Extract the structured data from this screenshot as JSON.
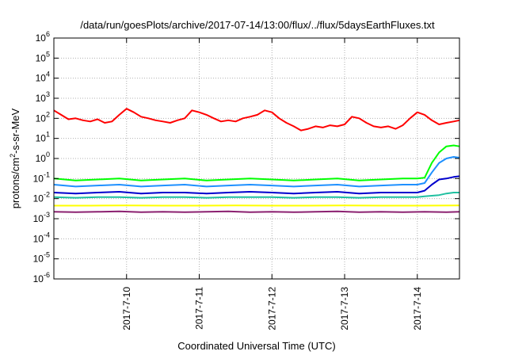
{
  "chart_data": {
    "type": "line",
    "title": "/data/run/goesPlots/archive/2017-07-14/13:00/flux/../flux/5daysEarthFluxes.txt",
    "xlabel": "Coordinated Universal Time (UTC)",
    "ylabel": {
      "prefix": "protons/cm",
      "sup": "2",
      "suffix": "-s-sr-MeV"
    },
    "y_scale": "log",
    "ylim": [
      1e-06,
      1000000.0
    ],
    "y_ticks": [
      {
        "exp": "-6",
        "value": 1e-06
      },
      {
        "exp": "-5",
        "value": 1e-05
      },
      {
        "exp": "-4",
        "value": 0.0001
      },
      {
        "exp": "-3",
        "value": 0.001
      },
      {
        "exp": "-2",
        "value": 0.01
      },
      {
        "exp": "-1",
        "value": 0.1
      },
      {
        "exp": "0",
        "value": 1
      },
      {
        "exp": "1",
        "value": 10
      },
      {
        "exp": "2",
        "value": 100
      },
      {
        "exp": "3",
        "value": 1000
      },
      {
        "exp": "4",
        "value": 10000
      },
      {
        "exp": "5",
        "value": 100000
      },
      {
        "exp": "6",
        "value": 1000000
      }
    ],
    "x_ticks": [
      "2017-7-10",
      "2017-7-11",
      "2017-7-12",
      "2017-7-13",
      "2017-7-14"
    ],
    "xlim_days": [
      9.0,
      14.58
    ],
    "grid": true,
    "series": [
      {
        "color": "#ff0000",
        "x": [
          9.0,
          9.1,
          9.2,
          9.3,
          9.4,
          9.5,
          9.6,
          9.7,
          9.8,
          9.9,
          10.0,
          10.1,
          10.2,
          10.3,
          10.4,
          10.5,
          10.6,
          10.7,
          10.8,
          10.9,
          11.0,
          11.1,
          11.2,
          11.3,
          11.4,
          11.5,
          11.6,
          11.7,
          11.8,
          11.9,
          12.0,
          12.1,
          12.2,
          12.3,
          12.4,
          12.5,
          12.6,
          12.7,
          12.8,
          12.9,
          13.0,
          13.1,
          13.2,
          13.3,
          13.4,
          13.5,
          13.6,
          13.7,
          13.8,
          13.9,
          14.0,
          14.1,
          14.2,
          14.3,
          14.4,
          14.5,
          14.58
        ],
        "y": [
          250,
          150,
          90,
          100,
          80,
          70,
          90,
          60,
          70,
          150,
          300,
          200,
          120,
          100,
          80,
          70,
          60,
          80,
          100,
          250,
          200,
          150,
          100,
          70,
          80,
          70,
          100,
          120,
          150,
          250,
          200,
          100,
          60,
          40,
          25,
          30,
          40,
          35,
          45,
          40,
          50,
          120,
          100,
          60,
          40,
          35,
          40,
          30,
          45,
          100,
          200,
          150,
          80,
          50,
          60,
          70,
          80
        ]
      },
      {
        "color": "#00ff00",
        "x": [
          9.0,
          9.3,
          9.6,
          9.9,
          10.2,
          10.5,
          10.8,
          11.1,
          11.4,
          11.7,
          12.0,
          12.3,
          12.6,
          12.9,
          13.2,
          13.5,
          13.8,
          14.0,
          14.1,
          14.2,
          14.3,
          14.4,
          14.5,
          14.58
        ],
        "y": [
          0.1,
          0.08,
          0.09,
          0.1,
          0.08,
          0.09,
          0.1,
          0.08,
          0.09,
          0.1,
          0.09,
          0.08,
          0.09,
          0.1,
          0.08,
          0.09,
          0.1,
          0.1,
          0.11,
          0.6,
          2.0,
          4.0,
          4.5,
          4.0
        ]
      },
      {
        "color": "#1e90ff",
        "x": [
          9.0,
          9.3,
          9.6,
          9.9,
          10.2,
          10.5,
          10.8,
          11.1,
          11.4,
          11.7,
          12.0,
          12.3,
          12.6,
          12.9,
          13.2,
          13.5,
          13.8,
          14.0,
          14.1,
          14.2,
          14.3,
          14.4,
          14.5,
          14.58
        ],
        "y": [
          0.05,
          0.04,
          0.045,
          0.05,
          0.04,
          0.045,
          0.05,
          0.04,
          0.045,
          0.05,
          0.045,
          0.04,
          0.045,
          0.05,
          0.04,
          0.045,
          0.05,
          0.05,
          0.06,
          0.2,
          0.6,
          1.0,
          1.2,
          1.1
        ]
      },
      {
        "color": "#0000cd",
        "x": [
          9.0,
          9.3,
          9.6,
          9.9,
          10.2,
          10.5,
          10.8,
          11.1,
          11.4,
          11.7,
          12.0,
          12.3,
          12.6,
          12.9,
          13.2,
          13.5,
          13.8,
          14.0,
          14.1,
          14.2,
          14.3,
          14.4,
          14.5,
          14.58
        ],
        "y": [
          0.02,
          0.018,
          0.02,
          0.022,
          0.018,
          0.02,
          0.02,
          0.018,
          0.02,
          0.022,
          0.02,
          0.018,
          0.02,
          0.022,
          0.018,
          0.02,
          0.02,
          0.02,
          0.025,
          0.05,
          0.09,
          0.1,
          0.12,
          0.13
        ]
      },
      {
        "color": "#20c0a0",
        "x": [
          9.0,
          9.3,
          9.6,
          9.9,
          10.2,
          10.5,
          10.8,
          11.1,
          11.4,
          11.7,
          12.0,
          12.3,
          12.6,
          12.9,
          13.2,
          13.5,
          13.8,
          14.0,
          14.1,
          14.2,
          14.3,
          14.4,
          14.5,
          14.58
        ],
        "y": [
          0.012,
          0.011,
          0.012,
          0.012,
          0.011,
          0.012,
          0.012,
          0.011,
          0.012,
          0.012,
          0.012,
          0.011,
          0.012,
          0.012,
          0.011,
          0.012,
          0.012,
          0.012,
          0.013,
          0.014,
          0.015,
          0.018,
          0.02,
          0.02
        ]
      },
      {
        "color": "#ffff00",
        "x": [
          9.0,
          9.5,
          10.0,
          10.5,
          11.0,
          11.5,
          12.0,
          12.5,
          13.0,
          13.5,
          14.0,
          14.58
        ],
        "y": [
          0.0045,
          0.0045,
          0.0046,
          0.0045,
          0.0045,
          0.0046,
          0.0045,
          0.0045,
          0.0046,
          0.0045,
          0.0045,
          0.0046
        ]
      },
      {
        "color": "#8b2070",
        "x": [
          9.0,
          9.3,
          9.6,
          9.9,
          10.2,
          10.5,
          10.8,
          11.1,
          11.4,
          11.7,
          12.0,
          12.3,
          12.6,
          12.9,
          13.2,
          13.5,
          13.8,
          14.1,
          14.4,
          14.58
        ],
        "y": [
          0.0022,
          0.0021,
          0.0022,
          0.0023,
          0.0021,
          0.0022,
          0.0021,
          0.0022,
          0.0023,
          0.0021,
          0.0022,
          0.0021,
          0.0022,
          0.0023,
          0.0021,
          0.0022,
          0.0021,
          0.0022,
          0.0021,
          0.0022
        ]
      }
    ]
  }
}
